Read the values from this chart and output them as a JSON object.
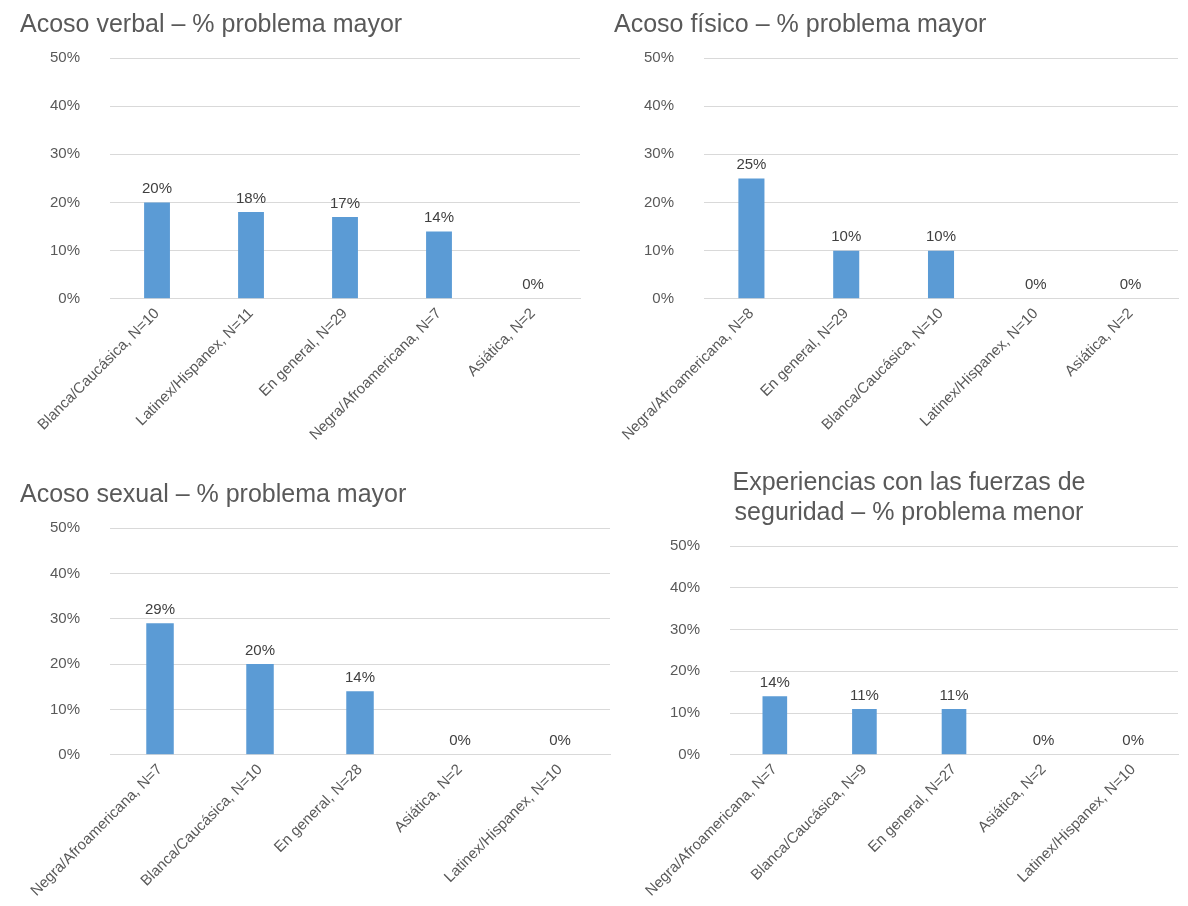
{
  "chart_data": [
    {
      "type": "bar",
      "title": "Acoso verbal – % problema mayor",
      "categories": [
        "Blanca/Caucásica, N=10",
        "Latinex/Hispanex, N=11",
        "En general, N=29",
        "Negra/Afroamericana, N=7",
        "Asiática, N=2"
      ],
      "values": [
        20,
        18,
        17,
        14,
        0
      ],
      "value_labels": [
        "20%",
        "18%",
        "17%",
        "14%",
        "0%"
      ],
      "color": "#5b9bd5",
      "ylim": [
        0,
        50
      ],
      "yticks": [
        {
          "value": 0,
          "label": "0%"
        },
        {
          "value": 10,
          "label": "10%"
        },
        {
          "value": 20,
          "label": "20%"
        },
        {
          "value": 30,
          "label": "30%"
        },
        {
          "value": 40,
          "label": "40%"
        },
        {
          "value": 50,
          "label": "50%"
        }
      ],
      "grid": "y",
      "legend": false
    },
    {
      "type": "bar",
      "title": "Acoso físico – % problema mayor",
      "categories": [
        "Negra/Afroamericana, N=8",
        "En general, N=29",
        "Blanca/Caucásica, N=10",
        "Latinex/Hispanex, N=10",
        "Asiática, N=2"
      ],
      "values": [
        25,
        10,
        10,
        0,
        0
      ],
      "value_labels": [
        "25%",
        "10%",
        "10%",
        "0%",
        "0%"
      ],
      "color": "#5b9bd5",
      "ylim": [
        0,
        50
      ],
      "yticks": [
        {
          "value": 0,
          "label": "0%"
        },
        {
          "value": 10,
          "label": "10%"
        },
        {
          "value": 20,
          "label": "20%"
        },
        {
          "value": 30,
          "label": "30%"
        },
        {
          "value": 40,
          "label": "40%"
        },
        {
          "value": 50,
          "label": "50%"
        }
      ],
      "grid": "y",
      "legend": false
    },
    {
      "type": "bar",
      "title": "Acoso sexual – % problema mayor",
      "categories": [
        "Negra/Afroamericana, N=7",
        "Blanca/Caucásica, N=10",
        "En general, N=28",
        "Asiática, N=2",
        "Latinex/Hispanex, N=10"
      ],
      "values": [
        29,
        20,
        14,
        0,
        0
      ],
      "value_labels": [
        "29%",
        "20%",
        "14%",
        "0%",
        "0%"
      ],
      "color": "#5b9bd5",
      "ylim": [
        0,
        50
      ],
      "yticks": [
        {
          "value": 0,
          "label": "0%"
        },
        {
          "value": 10,
          "label": "10%"
        },
        {
          "value": 20,
          "label": "20%"
        },
        {
          "value": 30,
          "label": "30%"
        },
        {
          "value": 40,
          "label": "40%"
        },
        {
          "value": 50,
          "label": "50%"
        }
      ],
      "grid": "y",
      "legend": false
    },
    {
      "type": "bar",
      "title": "Experiencias con las fuerzas de seguridad – % problema menor",
      "categories": [
        "Negra/Afroamericana, N=7",
        "Blanca/Caucásica, N=9",
        "En general, N=27",
        "Asiática, N=2",
        "Latinex/Hispanex, N=10"
      ],
      "values": [
        14,
        11,
        11,
        0,
        0
      ],
      "value_labels": [
        "14%",
        "11%",
        "11%",
        "0%",
        "0%"
      ],
      "color": "#5b9bd5",
      "ylim": [
        0,
        50
      ],
      "yticks": [
        {
          "value": 0,
          "label": "0%"
        },
        {
          "value": 10,
          "label": "10%"
        },
        {
          "value": 20,
          "label": "20%"
        },
        {
          "value": 30,
          "label": "30%"
        },
        {
          "value": 40,
          "label": "40%"
        },
        {
          "value": 50,
          "label": "50%"
        }
      ],
      "grid": "y",
      "legend": false
    }
  ]
}
